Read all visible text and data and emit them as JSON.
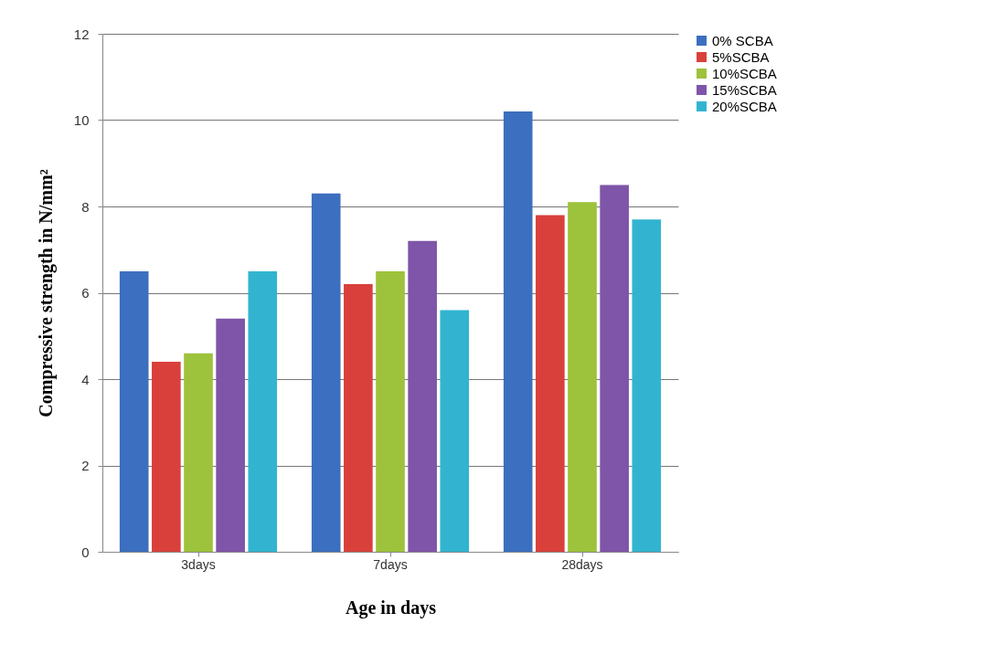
{
  "chart_data": {
    "type": "bar",
    "xlabel": "Age in days",
    "ylabel": "Compressive strength in N/mm²",
    "categories": [
      "3days",
      "7days",
      "28days"
    ],
    "series": [
      {
        "name": "0% SCBA",
        "color": "#3c6fbf",
        "values": [
          6.5,
          8.3,
          10.2
        ]
      },
      {
        "name": "5%SCBA",
        "color": "#d9403b",
        "values": [
          4.4,
          6.2,
          7.8
        ]
      },
      {
        "name": "10%SCBA",
        "color": "#9dc23b",
        "values": [
          4.6,
          6.5,
          8.1
        ]
      },
      {
        "name": "15%SCBA",
        "color": "#7e55a8",
        "values": [
          5.4,
          7.2,
          8.5
        ]
      },
      {
        "name": "20%SCBA",
        "color": "#32b4d0",
        "values": [
          6.5,
          5.6,
          7.7
        ]
      }
    ],
    "ylim": [
      0,
      12
    ],
    "yticks": [
      0,
      2,
      4,
      6,
      8,
      10,
      12
    ],
    "grid": "y",
    "legend": "right"
  }
}
